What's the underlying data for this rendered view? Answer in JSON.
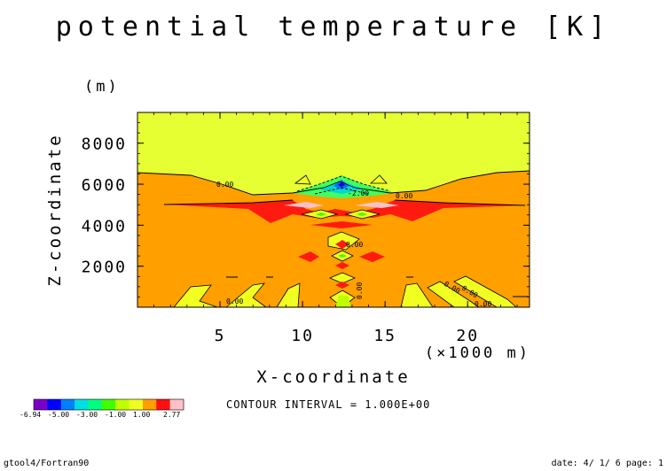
{
  "chart_data": {
    "type": "heatmap",
    "title": "potential temperature [K]",
    "xlabel": "X-coordinate",
    "ylabel": "Z-coordinate",
    "x_unit": "(×1000 m)",
    "y_unit": "(m)",
    "xlim": [
      0,
      23.75
    ],
    "ylim": [
      0,
      9500
    ],
    "x_ticks": [
      5,
      10,
      15,
      20
    ],
    "y_ticks": [
      2000,
      4000,
      6000,
      8000
    ],
    "x_tick_labels": [
      "5",
      "10",
      "15",
      "20"
    ],
    "y_tick_labels": [
      "2000",
      "4000",
      "6000",
      "8000"
    ],
    "contour_interval_text": "CONTOUR INTERVAL = 1.000E+00",
    "contour_labels": [
      "0.00",
      "0.00",
      "-2.00",
      "0.00",
      "0.00",
      "0.00",
      "0.00",
      "0.00",
      "0.00"
    ],
    "colorbar": {
      "labels": [
        "-6.94",
        "-5.00",
        "-3.00",
        "-1.00",
        "1.00",
        "2.77"
      ],
      "colors": [
        "#7a00c8",
        "#0000ff",
        "#0080ff",
        "#00e0e0",
        "#00ff80",
        "#40ff00",
        "#c0ff00",
        "#f0ff20",
        "#ffa000",
        "#ff1010",
        "#ffc0c8"
      ]
    },
    "grid": false,
    "legend": "bottom-left"
  },
  "footer": {
    "left": "gtool4/Fortran90",
    "right": "date: 4/ 1/ 6 page: 1"
  }
}
